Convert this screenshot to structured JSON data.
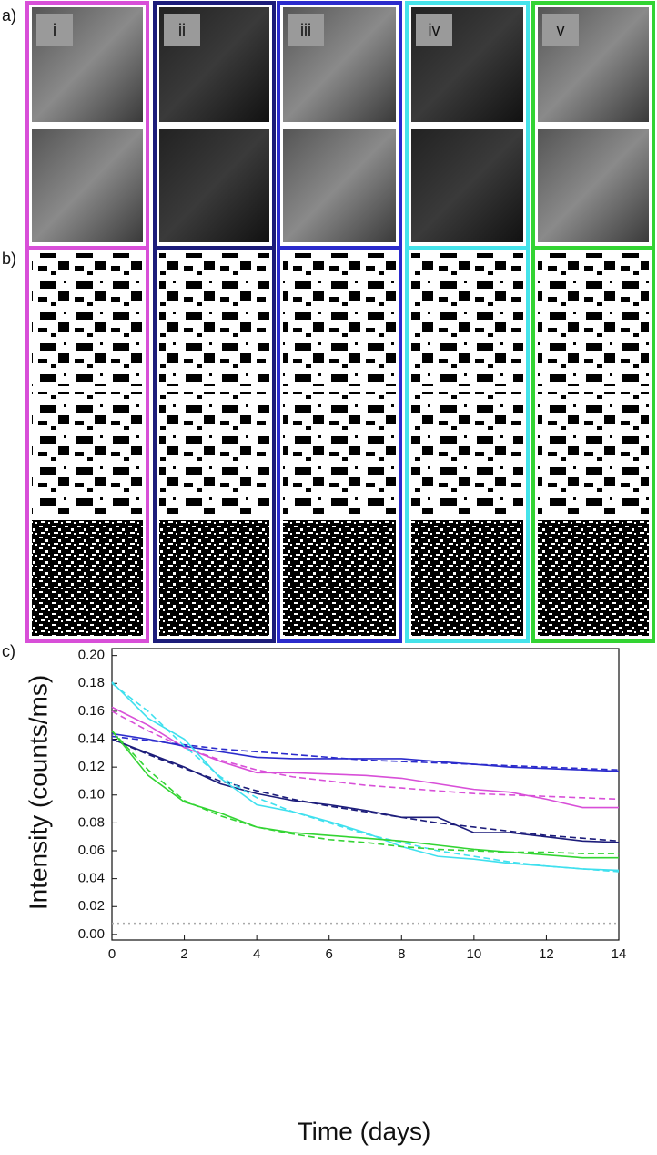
{
  "panel_labels": {
    "a": "a)",
    "b": "b)",
    "c": "c)"
  },
  "panels": [
    {
      "label": "i",
      "color": "#d84fd8"
    },
    {
      "label": "ii",
      "color": "#1c1c7a"
    },
    {
      "label": "iii",
      "color": "#2b2bcc"
    },
    {
      "label": "iv",
      "color": "#45e3ea"
    },
    {
      "label": "v",
      "color": "#33d433"
    }
  ],
  "chart_data": {
    "type": "line",
    "x_label": "Time (days)",
    "y_label": "Intensity (counts/ms)",
    "x": [
      0,
      1,
      2,
      3,
      4,
      5,
      6,
      7,
      8,
      9,
      10,
      11,
      12,
      13,
      14
    ],
    "xlim": [
      0,
      14
    ],
    "ylim": [
      -0.004,
      0.205
    ],
    "xticks": [
      0,
      2,
      4,
      6,
      8,
      10,
      12,
      14
    ],
    "yticks": [
      {
        "value": 0,
        "label": "0.00"
      },
      {
        "value": 0.02,
        "label": "0.02"
      },
      {
        "value": 0.04,
        "label": "0.04"
      },
      {
        "value": 0.06,
        "label": "0.06"
      },
      {
        "value": 0.08,
        "label": "0.08"
      },
      {
        "value": 0.1,
        "label": "0.10"
      },
      {
        "value": 0.12,
        "label": "0.12"
      },
      {
        "value": 0.14,
        "label": "0.14"
      },
      {
        "value": 0.16,
        "label": "0.16"
      },
      {
        "value": 0.18,
        "label": "0.18"
      },
      {
        "value": 0.2,
        "label": "0.20"
      }
    ],
    "grid": false,
    "series": [
      {
        "color": "#d84fd8",
        "dash": "solid",
        "values": [
          0.163,
          0.15,
          0.134,
          0.124,
          0.116,
          0.116,
          0.115,
          0.114,
          0.112,
          0.108,
          0.104,
          0.102,
          0.097,
          0.091,
          0.091
        ]
      },
      {
        "color": "#d84fd8",
        "dash": "dashed",
        "values": [
          0.16,
          0.146,
          0.134,
          0.125,
          0.118,
          0.113,
          0.11,
          0.107,
          0.105,
          0.103,
          0.101,
          0.1,
          0.099,
          0.098,
          0.097
        ]
      },
      {
        "color": "#1c1c7a",
        "dash": "solid",
        "values": [
          0.14,
          0.13,
          0.12,
          0.108,
          0.101,
          0.096,
          0.093,
          0.089,
          0.084,
          0.084,
          0.073,
          0.073,
          0.07,
          0.067,
          0.066
        ]
      },
      {
        "color": "#1c1c7a",
        "dash": "dashed",
        "values": [
          0.14,
          0.129,
          0.119,
          0.11,
          0.103,
          0.097,
          0.092,
          0.088,
          0.084,
          0.08,
          0.077,
          0.074,
          0.071,
          0.069,
          0.067
        ]
      },
      {
        "color": "#2b2bcc",
        "dash": "solid",
        "values": [
          0.144,
          0.14,
          0.135,
          0.131,
          0.127,
          0.126,
          0.126,
          0.126,
          0.126,
          0.124,
          0.122,
          0.12,
          0.119,
          0.118,
          0.117
        ]
      },
      {
        "color": "#2b2bcc",
        "dash": "dashed",
        "values": [
          0.142,
          0.139,
          0.136,
          0.133,
          0.131,
          0.129,
          0.127,
          0.125,
          0.124,
          0.123,
          0.122,
          0.121,
          0.12,
          0.119,
          0.118
        ]
      },
      {
        "color": "#3fe0ee",
        "dash": "solid",
        "values": [
          0.181,
          0.155,
          0.14,
          0.112,
          0.093,
          0.088,
          0.081,
          0.073,
          0.063,
          0.056,
          0.054,
          0.051,
          0.049,
          0.047,
          0.046
        ]
      },
      {
        "color": "#3fe0ee",
        "dash": "dashed",
        "values": [
          0.18,
          0.16,
          0.135,
          0.113,
          0.098,
          0.088,
          0.08,
          0.072,
          0.066,
          0.06,
          0.056,
          0.052,
          0.049,
          0.047,
          0.045
        ]
      },
      {
        "color": "#33d433",
        "dash": "solid",
        "values": [
          0.146,
          0.114,
          0.095,
          0.087,
          0.077,
          0.073,
          0.071,
          0.069,
          0.067,
          0.064,
          0.061,
          0.059,
          0.057,
          0.055,
          0.055
        ]
      },
      {
        "color": "#33d433",
        "dash": "dashed",
        "values": [
          0.146,
          0.118,
          0.096,
          0.085,
          0.077,
          0.072,
          0.068,
          0.066,
          0.063,
          0.061,
          0.06,
          0.059,
          0.059,
          0.058,
          0.058
        ]
      },
      {
        "color": "#aaaaaa",
        "dash": "dotted",
        "values": [
          0.008,
          0.008,
          0.008,
          0.008,
          0.008,
          0.008,
          0.008,
          0.008,
          0.008,
          0.008,
          0.008,
          0.008,
          0.008,
          0.008,
          0.008
        ]
      }
    ]
  }
}
